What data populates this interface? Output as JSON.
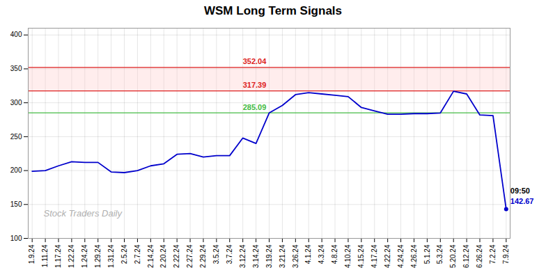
{
  "chart_data": {
    "type": "line",
    "title": "WSM Long Term Signals",
    "categories": [
      "1.9.24",
      "1.11.24",
      "1.17.24",
      "1.22.24",
      "1.24.24",
      "1.29.24",
      "1.31.24",
      "2.5.24",
      "2.7.24",
      "2.14.24",
      "2.20.24",
      "2.22.24",
      "2.27.24",
      "2.29.24",
      "3.5.24",
      "3.7.24",
      "3.12.24",
      "3.14.24",
      "3.19.24",
      "3.21.24",
      "3.26.24",
      "4.1.24",
      "4.3.24",
      "4.8.24",
      "4.10.24",
      "4.15.24",
      "4.17.24",
      "4.22.24",
      "4.24.24",
      "4.26.24",
      "5.1.24",
      "5.3.24",
      "5.20.24",
      "6.12.24",
      "6.26.24",
      "7.2.24",
      "7.9.24"
    ],
    "values": [
      199,
      200,
      207,
      213,
      212,
      212,
      198,
      197,
      200,
      207,
      210,
      224,
      225,
      220,
      222,
      222,
      248,
      240,
      285,
      296,
      312,
      315,
      313,
      311,
      309,
      293,
      288,
      283,
      283,
      284,
      284,
      285,
      317,
      313,
      282,
      281,
      143
    ],
    "color": "#0000cc",
    "ylim": [
      100,
      410
    ],
    "yticks": [
      100,
      150,
      200,
      250,
      300,
      350,
      400
    ],
    "grid": true,
    "band": {
      "from": 317.39,
      "to": 352.04,
      "color": "#ffcccc"
    },
    "reference_lines": [
      {
        "value": 352.04,
        "label": "352.04",
        "color": "#dd2222"
      },
      {
        "value": 317.39,
        "label": "317.39",
        "color": "#dd2222"
      },
      {
        "value": 285.09,
        "label": "285.09",
        "color": "#44bb44"
      }
    ],
    "annotations": [
      {
        "text": "09:50",
        "color": "#000000"
      },
      {
        "text": "142.67",
        "color": "#0000cc"
      }
    ],
    "watermark": {
      "text": "Stock Traders Daily",
      "color": "#b0b0b0"
    }
  }
}
